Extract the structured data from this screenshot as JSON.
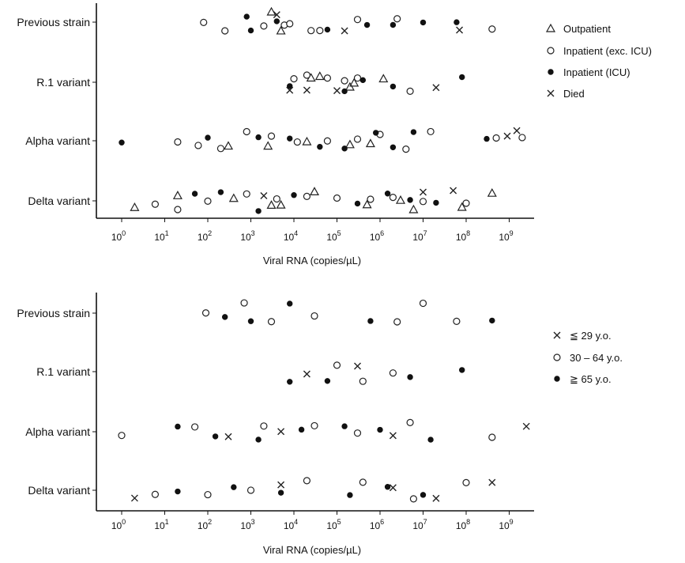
{
  "chart_data": [
    {
      "type": "scatter",
      "title": "",
      "xlabel": "Viral RNA (copies/µL)",
      "ylabel": "",
      "x_scale": "log10",
      "xlim": [
        0.5,
        3000000000
      ],
      "x_tick_exponents": [
        0,
        1,
        2,
        3,
        4,
        5,
        6,
        7,
        8,
        9
      ],
      "x_tick_base": "10",
      "categories": [
        "Previous strain",
        "R.1 variant",
        "Alpha variant",
        "Delta variant"
      ],
      "legend_position": "right",
      "series": [
        {
          "name": "Outpatient",
          "marker": "triangle",
          "points": [
            {
              "category": "Previous strain",
              "x": 3000
            },
            {
              "category": "Previous strain",
              "x": 5000
            },
            {
              "category": "R.1 variant",
              "x": 25000
            },
            {
              "category": "R.1 variant",
              "x": 40000
            },
            {
              "category": "R.1 variant",
              "x": 200000
            },
            {
              "category": "R.1 variant",
              "x": 250000
            },
            {
              "category": "R.1 variant",
              "x": 1200000
            },
            {
              "category": "Alpha variant",
              "x": 300
            },
            {
              "category": "Alpha variant",
              "x": 2500
            },
            {
              "category": "Alpha variant",
              "x": 20000
            },
            {
              "category": "Alpha variant",
              "x": 200000
            },
            {
              "category": "Alpha variant",
              "x": 600000
            },
            {
              "category": "Delta variant",
              "x": 2
            },
            {
              "category": "Delta variant",
              "x": 20
            },
            {
              "category": "Delta variant",
              "x": 400
            },
            {
              "category": "Delta variant",
              "x": 3000
            },
            {
              "category": "Delta variant",
              "x": 5000
            },
            {
              "category": "Delta variant",
              "x": 30000
            },
            {
              "category": "Delta variant",
              "x": 500000
            },
            {
              "category": "Delta variant",
              "x": 3000000
            },
            {
              "category": "Delta variant",
              "x": 6000000
            },
            {
              "category": "Delta variant",
              "x": 80000000
            },
            {
              "category": "Delta variant",
              "x": 400000000
            }
          ]
        },
        {
          "name": "Inpatient (exc. ICU)",
          "marker": "open-circle",
          "points": [
            {
              "category": "Previous strain",
              "x": 80
            },
            {
              "category": "Previous strain",
              "x": 250
            },
            {
              "category": "Previous strain",
              "x": 2000
            },
            {
              "category": "Previous strain",
              "x": 6000
            },
            {
              "category": "Previous strain",
              "x": 8000
            },
            {
              "category": "Previous strain",
              "x": 25000
            },
            {
              "category": "Previous strain",
              "x": 40000
            },
            {
              "category": "Previous strain",
              "x": 300000
            },
            {
              "category": "Previous strain",
              "x": 2500000
            },
            {
              "category": "Previous strain",
              "x": 400000000
            },
            {
              "category": "R.1 variant",
              "x": 10000
            },
            {
              "category": "R.1 variant",
              "x": 20000
            },
            {
              "category": "R.1 variant",
              "x": 60000
            },
            {
              "category": "R.1 variant",
              "x": 150000
            },
            {
              "category": "R.1 variant",
              "x": 300000
            },
            {
              "category": "R.1 variant",
              "x": 5000000
            },
            {
              "category": "Alpha variant",
              "x": 20
            },
            {
              "category": "Alpha variant",
              "x": 60
            },
            {
              "category": "Alpha variant",
              "x": 200
            },
            {
              "category": "Alpha variant",
              "x": 800
            },
            {
              "category": "Alpha variant",
              "x": 3000
            },
            {
              "category": "Alpha variant",
              "x": 12000
            },
            {
              "category": "Alpha variant",
              "x": 60000
            },
            {
              "category": "Alpha variant",
              "x": 300000
            },
            {
              "category": "Alpha variant",
              "x": 1000000
            },
            {
              "category": "Alpha variant",
              "x": 4000000
            },
            {
              "category": "Alpha variant",
              "x": 15000000
            },
            {
              "category": "Alpha variant",
              "x": 500000000
            },
            {
              "category": "Alpha variant",
              "x": 2000000000
            },
            {
              "category": "Delta variant",
              "x": 6
            },
            {
              "category": "Delta variant",
              "x": 20
            },
            {
              "category": "Delta variant",
              "x": 100
            },
            {
              "category": "Delta variant",
              "x": 800
            },
            {
              "category": "Delta variant",
              "x": 4000
            },
            {
              "category": "Delta variant",
              "x": 20000
            },
            {
              "category": "Delta variant",
              "x": 100000
            },
            {
              "category": "Delta variant",
              "x": 600000
            },
            {
              "category": "Delta variant",
              "x": 2000000
            },
            {
              "category": "Delta variant",
              "x": 10000000
            },
            {
              "category": "Delta variant",
              "x": 100000000
            }
          ]
        },
        {
          "name": "Inpatient (ICU)",
          "marker": "filled-circle",
          "points": [
            {
              "category": "Previous strain",
              "x": 800
            },
            {
              "category": "Previous strain",
              "x": 1000
            },
            {
              "category": "Previous strain",
              "x": 4000
            },
            {
              "category": "Previous strain",
              "x": 60000
            },
            {
              "category": "Previous strain",
              "x": 500000
            },
            {
              "category": "Previous strain",
              "x": 2000000
            },
            {
              "category": "Previous strain",
              "x": 10000000
            },
            {
              "category": "Previous strain",
              "x": 60000000
            },
            {
              "category": "R.1 variant",
              "x": 8000
            },
            {
              "category": "R.1 variant",
              "x": 150000
            },
            {
              "category": "R.1 variant",
              "x": 400000
            },
            {
              "category": "R.1 variant",
              "x": 2000000
            },
            {
              "category": "R.1 variant",
              "x": 80000000
            },
            {
              "category": "Alpha variant",
              "x": 1
            },
            {
              "category": "Alpha variant",
              "x": 100
            },
            {
              "category": "Alpha variant",
              "x": 1500
            },
            {
              "category": "Alpha variant",
              "x": 8000
            },
            {
              "category": "Alpha variant",
              "x": 40000
            },
            {
              "category": "Alpha variant",
              "x": 150000
            },
            {
              "category": "Alpha variant",
              "x": 800000
            },
            {
              "category": "Alpha variant",
              "x": 2000000
            },
            {
              "category": "Alpha variant",
              "x": 6000000
            },
            {
              "category": "Alpha variant",
              "x": 300000000
            },
            {
              "category": "Delta variant",
              "x": 50
            },
            {
              "category": "Delta variant",
              "x": 200
            },
            {
              "category": "Delta variant",
              "x": 1500
            },
            {
              "category": "Delta variant",
              "x": 10000
            },
            {
              "category": "Delta variant",
              "x": 300000
            },
            {
              "category": "Delta variant",
              "x": 1500000
            },
            {
              "category": "Delta variant",
              "x": 5000000
            },
            {
              "category": "Delta variant",
              "x": 20000000
            }
          ]
        },
        {
          "name": "Died",
          "marker": "x",
          "points": [
            {
              "category": "Previous strain",
              "x": 4000
            },
            {
              "category": "Previous strain",
              "x": 150000
            },
            {
              "category": "Previous strain",
              "x": 70000000
            },
            {
              "category": "R.1 variant",
              "x": 8000
            },
            {
              "category": "R.1 variant",
              "x": 20000
            },
            {
              "category": "R.1 variant",
              "x": 100000
            },
            {
              "category": "R.1 variant",
              "x": 20000000
            },
            {
              "category": "Alpha variant",
              "x": 900000000
            },
            {
              "category": "Alpha variant",
              "x": 1500000000
            },
            {
              "category": "Delta variant",
              "x": 2000
            },
            {
              "category": "Delta variant",
              "x": 10000000
            },
            {
              "category": "Delta variant",
              "x": 50000000
            }
          ]
        }
      ]
    },
    {
      "type": "scatter",
      "title": "",
      "xlabel": "Viral RNA (copies/µL)",
      "ylabel": "",
      "x_scale": "log10",
      "xlim": [
        0.5,
        3000000000
      ],
      "x_tick_exponents": [
        0,
        1,
        2,
        3,
        4,
        5,
        6,
        7,
        8,
        9
      ],
      "x_tick_base": "10",
      "categories": [
        "Previous strain",
        "R.1 variant",
        "Alpha variant",
        "Delta variant"
      ],
      "legend_position": "right",
      "series": [
        {
          "name": "≦ 29 y.o.",
          "marker": "x",
          "points": [
            {
              "category": "R.1 variant",
              "x": 20000
            },
            {
              "category": "R.1 variant",
              "x": 300000
            },
            {
              "category": "Alpha variant",
              "x": 300
            },
            {
              "category": "Alpha variant",
              "x": 5000
            },
            {
              "category": "Alpha variant",
              "x": 2000000
            },
            {
              "category": "Alpha variant",
              "x": 2500000000
            },
            {
              "category": "Delta variant",
              "x": 2
            },
            {
              "category": "Delta variant",
              "x": 5000
            },
            {
              "category": "Delta variant",
              "x": 2000000
            },
            {
              "category": "Delta variant",
              "x": 20000000
            },
            {
              "category": "Delta variant",
              "x": 400000000
            }
          ]
        },
        {
          "name": "30 – 64 y.o.",
          "marker": "open-circle",
          "points": [
            {
              "category": "Previous strain",
              "x": 90
            },
            {
              "category": "Previous strain",
              "x": 700
            },
            {
              "category": "Previous strain",
              "x": 3000
            },
            {
              "category": "Previous strain",
              "x": 30000
            },
            {
              "category": "Previous strain",
              "x": 2500000
            },
            {
              "category": "Previous strain",
              "x": 10000000
            },
            {
              "category": "Previous strain",
              "x": 60000000
            },
            {
              "category": "R.1 variant",
              "x": 100000
            },
            {
              "category": "R.1 variant",
              "x": 400000
            },
            {
              "category": "R.1 variant",
              "x": 2000000
            },
            {
              "category": "Alpha variant",
              "x": 1
            },
            {
              "category": "Alpha variant",
              "x": 50
            },
            {
              "category": "Alpha variant",
              "x": 2000
            },
            {
              "category": "Alpha variant",
              "x": 30000
            },
            {
              "category": "Alpha variant",
              "x": 300000
            },
            {
              "category": "Alpha variant",
              "x": 5000000
            },
            {
              "category": "Alpha variant",
              "x": 400000000
            },
            {
              "category": "Delta variant",
              "x": 6
            },
            {
              "category": "Delta variant",
              "x": 100
            },
            {
              "category": "Delta variant",
              "x": 1000
            },
            {
              "category": "Delta variant",
              "x": 20000
            },
            {
              "category": "Delta variant",
              "x": 400000
            },
            {
              "category": "Delta variant",
              "x": 6000000
            },
            {
              "category": "Delta variant",
              "x": 100000000
            }
          ]
        },
        {
          "name": "≧ 65 y.o.",
          "marker": "filled-circle",
          "points": [
            {
              "category": "Previous strain",
              "x": 250
            },
            {
              "category": "Previous strain",
              "x": 1000
            },
            {
              "category": "Previous strain",
              "x": 8000
            },
            {
              "category": "Previous strain",
              "x": 600000
            },
            {
              "category": "Previous strain",
              "x": 400000000
            },
            {
              "category": "R.1 variant",
              "x": 8000
            },
            {
              "category": "R.1 variant",
              "x": 60000
            },
            {
              "category": "R.1 variant",
              "x": 5000000
            },
            {
              "category": "R.1 variant",
              "x": 80000000
            },
            {
              "category": "Alpha variant",
              "x": 20
            },
            {
              "category": "Alpha variant",
              "x": 150
            },
            {
              "category": "Alpha variant",
              "x": 1500
            },
            {
              "category": "Alpha variant",
              "x": 15000
            },
            {
              "category": "Alpha variant",
              "x": 150000
            },
            {
              "category": "Alpha variant",
              "x": 1000000
            },
            {
              "category": "Alpha variant",
              "x": 15000000
            },
            {
              "category": "Delta variant",
              "x": 20
            },
            {
              "category": "Delta variant",
              "x": 400
            },
            {
              "category": "Delta variant",
              "x": 5000
            },
            {
              "category": "Delta variant",
              "x": 200000
            },
            {
              "category": "Delta variant",
              "x": 1500000
            },
            {
              "category": "Delta variant",
              "x": 10000000
            }
          ]
        }
      ]
    }
  ]
}
